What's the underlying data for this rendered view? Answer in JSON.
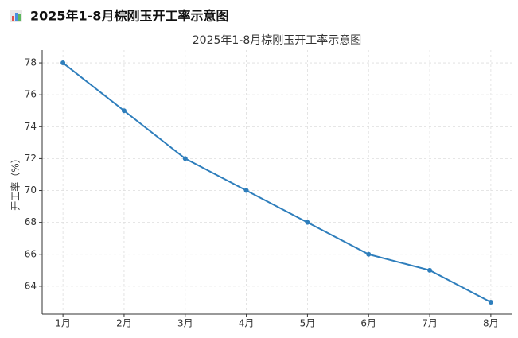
{
  "chart_data": {
    "type": "line",
    "title": "2025年1-8月棕刚玉开工率示意图",
    "ylabel": "开工率（%）",
    "categories": [
      "1月",
      "2月",
      "3月",
      "4月",
      "5月",
      "6月",
      "7月",
      "8月"
    ],
    "values": [
      78,
      75,
      72,
      70,
      68,
      66,
      65,
      63
    ],
    "color": "#2e7ebc",
    "ylim": [
      62.25,
      78.8
    ],
    "yticks": [
      64,
      66,
      68,
      70,
      72,
      74,
      76,
      78
    ],
    "grid": true
  }
}
